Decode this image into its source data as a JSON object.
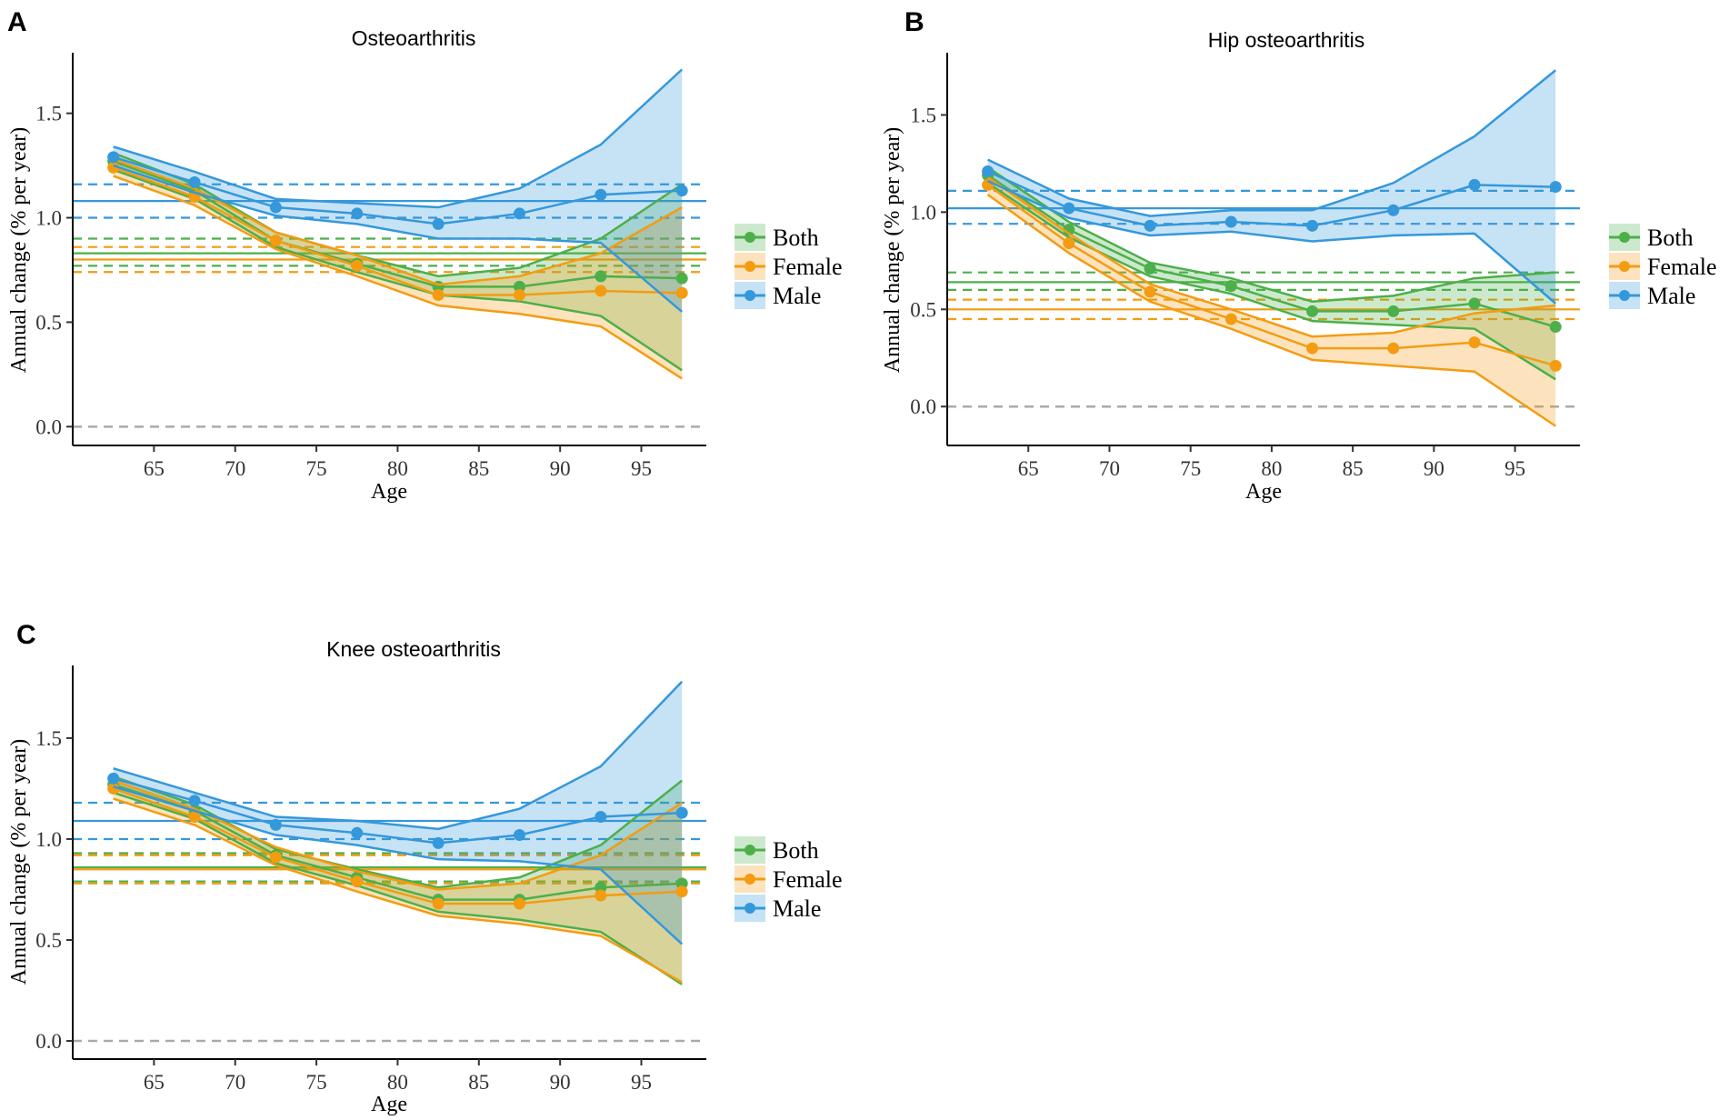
{
  "figure": {
    "colors": {
      "Both": "#4daf4a",
      "Female": "#f39c12",
      "Male": "#3498db",
      "zero_line": "#aaaaaa",
      "axis": "#000000"
    }
  },
  "chart_data": [
    {
      "panel": "A",
      "type": "line",
      "title": "Osteoarthritis",
      "xlabel": "Age",
      "ylabel": "Annual change (% per year)",
      "xlim": [
        60,
        99
      ],
      "ylim": [
        -0.09,
        1.79
      ],
      "xticks": [
        65,
        70,
        75,
        80,
        85,
        90,
        95
      ],
      "yticks": [
        0.0,
        0.5,
        1.0,
        1.5
      ],
      "ytick_labels": [
        "0.0",
        "0.5",
        "1.0",
        "1.5"
      ],
      "x": [
        62.5,
        67.5,
        72.5,
        77.5,
        82.5,
        87.5,
        92.5,
        97.5
      ],
      "legend": [
        "Both",
        "Female",
        "Male"
      ],
      "series": [
        {
          "name": "Both",
          "values": [
            1.27,
            1.13,
            0.89,
            0.78,
            0.67,
            0.67,
            0.72,
            0.71
          ],
          "lower": [
            1.23,
            1.09,
            0.86,
            0.74,
            0.63,
            0.6,
            0.53,
            0.27
          ],
          "upper": [
            1.31,
            1.16,
            0.93,
            0.82,
            0.72,
            0.76,
            0.9,
            1.16
          ],
          "mean": 0.83,
          "mean_lower": 0.77,
          "mean_upper": 0.9
        },
        {
          "name": "Female",
          "values": [
            1.24,
            1.1,
            0.89,
            0.77,
            0.63,
            0.63,
            0.65,
            0.64
          ],
          "lower": [
            1.2,
            1.06,
            0.85,
            0.72,
            0.58,
            0.54,
            0.48,
            0.23
          ],
          "upper": [
            1.28,
            1.14,
            0.93,
            0.82,
            0.68,
            0.72,
            0.83,
            1.05
          ],
          "mean": 0.8,
          "mean_lower": 0.74,
          "mean_upper": 0.86
        },
        {
          "name": "Male",
          "values": [
            1.29,
            1.17,
            1.05,
            1.02,
            0.97,
            1.02,
            1.11,
            1.13
          ],
          "lower": [
            1.25,
            1.12,
            1.01,
            0.97,
            0.9,
            0.9,
            0.88,
            0.55
          ],
          "upper": [
            1.34,
            1.22,
            1.09,
            1.07,
            1.05,
            1.14,
            1.35,
            1.71
          ],
          "mean": 1.08,
          "mean_lower": 1.0,
          "mean_upper": 1.16
        }
      ]
    },
    {
      "panel": "B",
      "type": "line",
      "title": "Hip  osteoarthritis",
      "xlabel": "Age",
      "ylabel": "Annual change (% per year)",
      "xlim": [
        60,
        99
      ],
      "ylim": [
        -0.2,
        1.82
      ],
      "xticks": [
        65,
        70,
        75,
        80,
        85,
        90,
        95
      ],
      "yticks": [
        0.0,
        0.5,
        1.0,
        1.5
      ],
      "ytick_labels": [
        "0.0",
        "0.5",
        "1.0",
        "1.5"
      ],
      "x": [
        62.5,
        67.5,
        72.5,
        77.5,
        82.5,
        87.5,
        92.5,
        97.5
      ],
      "legend": [
        "Both",
        "Female",
        "Male"
      ],
      "series": [
        {
          "name": "Both",
          "values": [
            1.19,
            0.91,
            0.71,
            0.62,
            0.49,
            0.49,
            0.53,
            0.41
          ],
          "lower": [
            1.15,
            0.87,
            0.67,
            0.58,
            0.44,
            0.42,
            0.4,
            0.14
          ],
          "upper": [
            1.23,
            0.95,
            0.74,
            0.66,
            0.54,
            0.57,
            0.66,
            0.69
          ],
          "mean": 0.64,
          "mean_lower": 0.6,
          "mean_upper": 0.69
        },
        {
          "name": "Female",
          "values": [
            1.14,
            0.84,
            0.59,
            0.45,
            0.3,
            0.3,
            0.33,
            0.21
          ],
          "lower": [
            1.09,
            0.79,
            0.54,
            0.4,
            0.24,
            0.21,
            0.18,
            -0.1
          ],
          "upper": [
            1.18,
            0.89,
            0.63,
            0.5,
            0.36,
            0.38,
            0.48,
            0.52
          ],
          "mean": 0.5,
          "mean_lower": 0.45,
          "mean_upper": 0.55
        },
        {
          "name": "Male",
          "values": [
            1.21,
            1.02,
            0.93,
            0.95,
            0.93,
            1.01,
            1.14,
            1.13
          ],
          "lower": [
            1.16,
            0.97,
            0.88,
            0.9,
            0.85,
            0.88,
            0.89,
            0.53
          ],
          "upper": [
            1.27,
            1.07,
            0.98,
            1.01,
            1.01,
            1.15,
            1.39,
            1.73
          ],
          "mean": 1.02,
          "mean_lower": 0.94,
          "mean_upper": 1.11
        }
      ]
    },
    {
      "panel": "C",
      "type": "line",
      "title": "Knee  osteoarthritis",
      "xlabel": "Age",
      "ylabel": "Annual change (% per year)",
      "xlim": [
        60,
        99
      ],
      "ylim": [
        -0.09,
        1.86
      ],
      "xticks": [
        65,
        70,
        75,
        80,
        85,
        90,
        95
      ],
      "yticks": [
        0.0,
        0.5,
        1.0,
        1.5
      ],
      "ytick_labels": [
        "0.0",
        "0.5",
        "1.0",
        "1.5"
      ],
      "x": [
        62.5,
        67.5,
        72.5,
        77.5,
        82.5,
        87.5,
        92.5,
        97.5
      ],
      "legend": [
        "Both",
        "Female",
        "Male"
      ],
      "series": [
        {
          "name": "Both",
          "values": [
            1.27,
            1.14,
            0.92,
            0.81,
            0.7,
            0.7,
            0.76,
            0.78
          ],
          "lower": [
            1.23,
            1.1,
            0.88,
            0.77,
            0.64,
            0.6,
            0.54,
            0.28
          ],
          "upper": [
            1.31,
            1.17,
            0.95,
            0.85,
            0.76,
            0.81,
            0.97,
            1.29
          ],
          "mean": 0.86,
          "mean_lower": 0.79,
          "mean_upper": 0.93
        },
        {
          "name": "Female",
          "values": [
            1.25,
            1.11,
            0.91,
            0.79,
            0.68,
            0.68,
            0.72,
            0.74
          ],
          "lower": [
            1.2,
            1.07,
            0.87,
            0.74,
            0.62,
            0.58,
            0.52,
            0.29
          ],
          "upper": [
            1.29,
            1.15,
            0.96,
            0.84,
            0.75,
            0.78,
            0.92,
            1.18
          ],
          "mean": 0.85,
          "mean_lower": 0.78,
          "mean_upper": 0.92
        },
        {
          "name": "Male",
          "values": [
            1.3,
            1.19,
            1.07,
            1.03,
            0.98,
            1.02,
            1.11,
            1.13
          ],
          "lower": [
            1.26,
            1.14,
            1.02,
            0.97,
            0.9,
            0.89,
            0.85,
            0.48
          ],
          "upper": [
            1.35,
            1.23,
            1.11,
            1.09,
            1.05,
            1.15,
            1.36,
            1.78
          ],
          "mean": 1.09,
          "mean_lower": 1.0,
          "mean_upper": 1.18
        }
      ]
    }
  ]
}
